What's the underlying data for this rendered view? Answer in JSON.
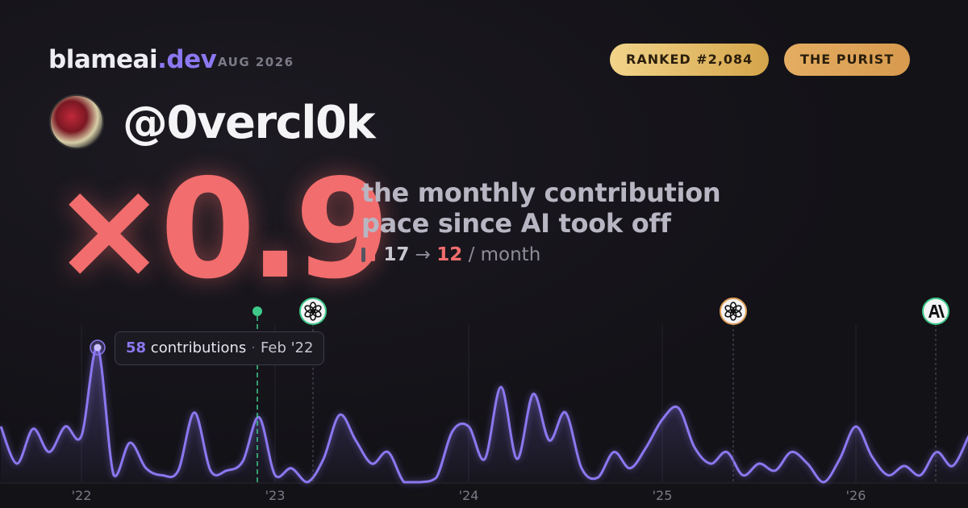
{
  "header": {
    "brand": "blameai",
    "brand_tld": ".dev",
    "date": "AUG 2026",
    "rank": "RANKED #2,084",
    "badge": "THE PURIST"
  },
  "profile": {
    "handle": "@0vercl0k",
    "multiplier": "×0.9",
    "description": [
      "the monthly contribution",
      "pace since AI took off"
    ],
    "before": 17,
    "arrow": "→",
    "after": 12,
    "unit": "/ month"
  },
  "chart_data": {
    "type": "area",
    "color": "#8b78f0",
    "categories": [
      null,
      null,
      null,
      null,
      null,
      "'22",
      null,
      null,
      null,
      null,
      null,
      null,
      null,
      null,
      null,
      null,
      null,
      "'23",
      null,
      null,
      null,
      null,
      null,
      null,
      null,
      null,
      null,
      null,
      null,
      "'24",
      null,
      null,
      null,
      null,
      null,
      null,
      null,
      null,
      null,
      null,
      null,
      "'25",
      null,
      null,
      null,
      null,
      null,
      null,
      null,
      null,
      null,
      null,
      null,
      "'26",
      null,
      null,
      null,
      null,
      null,
      null,
      null
    ],
    "values": [
      24,
      8,
      23,
      13,
      24,
      20,
      58,
      3,
      17,
      6,
      3,
      5,
      30,
      5,
      5,
      9,
      28,
      3,
      6,
      0,
      10,
      29,
      18,
      8,
      13,
      0,
      0,
      2,
      22,
      24,
      10,
      41,
      10,
      38,
      18,
      30,
      6,
      2,
      13,
      6,
      15,
      27,
      32,
      15,
      8,
      13,
      3,
      8,
      5,
      13,
      8,
      0,
      10,
      24,
      11,
      3,
      7,
      3,
      13,
      7,
      20
    ],
    "ylim": [
      0,
      58
    ],
    "tooltip": {
      "index": 6,
      "label": "contributions",
      "date": "Feb '22"
    },
    "events": [
      {
        "x": 15.9,
        "icon": "dot"
      },
      {
        "x": 19.35,
        "icon": "openai"
      },
      {
        "x": 45.4,
        "icon": "openai"
      },
      {
        "x": 57.95,
        "icon": "anthropic"
      }
    ]
  }
}
